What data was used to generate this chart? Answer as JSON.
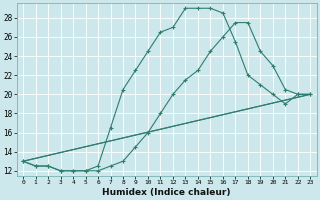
{
  "xlabel": "Humidex (Indice chaleur)",
  "bg_color": "#cce8ec",
  "grid_color": "#b0d4d8",
  "line_color": "#2e7d6e",
  "xlim": [
    -0.5,
    23.5
  ],
  "ylim": [
    11.5,
    29.5
  ],
  "yticks": [
    12,
    14,
    16,
    18,
    20,
    22,
    24,
    26,
    28
  ],
  "xticks": [
    0,
    1,
    2,
    3,
    4,
    5,
    6,
    7,
    8,
    9,
    10,
    11,
    12,
    13,
    14,
    15,
    16,
    17,
    18,
    19,
    20,
    21,
    22,
    23
  ],
  "line1_x": [
    0,
    1,
    2,
    3,
    4,
    5,
    6,
    7,
    8,
    9,
    10,
    11,
    12,
    13,
    14,
    15,
    16,
    17,
    18,
    19,
    20,
    21,
    22,
    23
  ],
  "line1_y": [
    13.0,
    12.5,
    12.5,
    12.0,
    12.0,
    12.0,
    12.5,
    16.5,
    20.5,
    22.5,
    24.5,
    26.5,
    27.0,
    29.0,
    29.0,
    29.0,
    28.5,
    25.5,
    22.0,
    21.0,
    20.0,
    19.0,
    20.0,
    20.0
  ],
  "line2_x": [
    0,
    1,
    2,
    3,
    4,
    5,
    6,
    7,
    8,
    9,
    10,
    11,
    12,
    13,
    14,
    15,
    16,
    17,
    18,
    19,
    20,
    21,
    22,
    23
  ],
  "line2_y": [
    13.0,
    12.5,
    12.5,
    12.0,
    12.0,
    12.0,
    12.0,
    12.5,
    13.0,
    14.5,
    16.0,
    18.0,
    20.0,
    21.5,
    22.5,
    24.5,
    26.0,
    27.5,
    27.5,
    24.5,
    23.0,
    20.5,
    20.0,
    20.0
  ],
  "line3_x": [
    0,
    23
  ],
  "line3_y": [
    13.0,
    20.0
  ],
  "line4_x": [
    0,
    23
  ],
  "line4_y": [
    13.0,
    20.0
  ]
}
